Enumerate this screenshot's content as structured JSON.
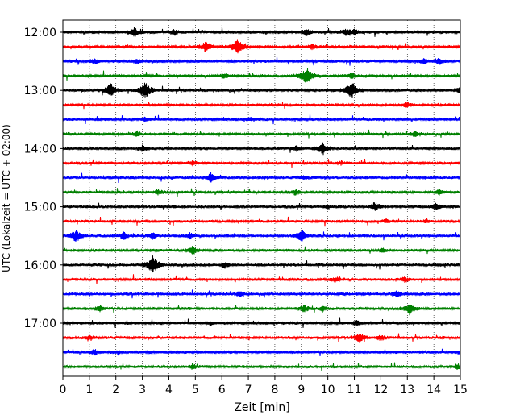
{
  "chart_data": {
    "type": "line",
    "title": "",
    "xlabel": "Zeit  [min]",
    "ylabel": "UTC (Lokalzeit = UTC + 02:00)",
    "xlim": [
      0,
      15
    ],
    "x_ticks": [
      "0",
      "1",
      "2",
      "3",
      "4",
      "5",
      "6",
      "7",
      "8",
      "9",
      "10",
      "11",
      "12",
      "13",
      "14",
      "15"
    ],
    "y_ticks": [
      "12:00",
      "13:00",
      "14:00",
      "15:00",
      "16:00",
      "17:00"
    ],
    "grid": "vertical dotted",
    "colors": [
      "#000000",
      "#ff0000",
      "#0000ff",
      "#008000"
    ],
    "traces": [
      {
        "start": "12:00",
        "color": "#000000",
        "events": [
          [
            2.7,
            0.5
          ],
          [
            4.2,
            0.3
          ],
          [
            9.2,
            0.4
          ],
          [
            11.0,
            0.3
          ],
          [
            10.7,
            0.3
          ]
        ]
      },
      {
        "start": "12:15",
        "color": "#ff0000",
        "events": [
          [
            5.4,
            0.6
          ],
          [
            6.6,
            1.0
          ],
          [
            9.4,
            0.3
          ]
        ]
      },
      {
        "start": "12:30",
        "color": "#0000ff",
        "events": [
          [
            1.2,
            0.3
          ],
          [
            2.8,
            0.3
          ],
          [
            14.2,
            0.3
          ],
          [
            13.6,
            0.3
          ]
        ]
      },
      {
        "start": "12:45",
        "color": "#008000",
        "events": [
          [
            6.1,
            0.3
          ],
          [
            9.2,
            1.0
          ],
          [
            10.9,
            0.3
          ]
        ]
      },
      {
        "start": "13:00",
        "color": "#000000",
        "events": [
          [
            1.8,
            0.8
          ],
          [
            3.1,
            1.0
          ],
          [
            10.9,
            1.0
          ],
          [
            15.0,
            0.4
          ]
        ]
      },
      {
        "start": "13:15",
        "color": "#ff0000",
        "events": [
          [
            13.0,
            0.3
          ]
        ]
      },
      {
        "start": "13:30",
        "color": "#0000ff",
        "events": [
          [
            3.1,
            0.2
          ],
          [
            7.1,
            0.2
          ]
        ]
      },
      {
        "start": "13:45",
        "color": "#008000",
        "events": [
          [
            2.8,
            0.3
          ],
          [
            13.3,
            0.3
          ]
        ]
      },
      {
        "start": "14:00",
        "color": "#000000",
        "events": [
          [
            3.0,
            0.3
          ],
          [
            8.8,
            0.3
          ],
          [
            9.8,
            0.7
          ]
        ]
      },
      {
        "start": "14:15",
        "color": "#ff0000",
        "events": [
          [
            4.9,
            0.3
          ],
          [
            10.5,
            0.2
          ]
        ]
      },
      {
        "start": "14:30",
        "color": "#0000ff",
        "events": [
          [
            5.6,
            0.6
          ],
          [
            9.1,
            0.2
          ]
        ]
      },
      {
        "start": "14:45",
        "color": "#008000",
        "events": [
          [
            3.6,
            0.3
          ],
          [
            8.8,
            0.3
          ],
          [
            14.2,
            0.3
          ]
        ]
      },
      {
        "start": "15:00",
        "color": "#000000",
        "events": [
          [
            11.8,
            0.5
          ],
          [
            14.1,
            0.4
          ],
          [
            10.0,
            0.2
          ]
        ]
      },
      {
        "start": "15:15",
        "color": "#ff0000",
        "events": [
          [
            12.2,
            0.2
          ],
          [
            13.7,
            0.2
          ]
        ]
      },
      {
        "start": "15:30",
        "color": "#0000ff",
        "events": [
          [
            0.5,
            0.7
          ],
          [
            2.3,
            0.4
          ],
          [
            3.4,
            0.4
          ],
          [
            4.8,
            0.3
          ],
          [
            9.0,
            0.7
          ]
        ]
      },
      {
        "start": "15:45",
        "color": "#008000",
        "events": [
          [
            4.9,
            0.5
          ],
          [
            12.1,
            0.2
          ]
        ]
      },
      {
        "start": "16:00",
        "color": "#000000",
        "events": [
          [
            3.4,
            1.0
          ],
          [
            6.1,
            0.3
          ]
        ]
      },
      {
        "start": "16:15",
        "color": "#ff0000",
        "events": [
          [
            10.3,
            0.3
          ],
          [
            12.9,
            0.3
          ]
        ]
      },
      {
        "start": "16:30",
        "color": "#0000ff",
        "events": [
          [
            6.7,
            0.3
          ],
          [
            12.6,
            0.4
          ]
        ]
      },
      {
        "start": "16:45",
        "color": "#008000",
        "events": [
          [
            1.4,
            0.3
          ],
          [
            9.1,
            0.4
          ],
          [
            9.8,
            0.3
          ],
          [
            13.1,
            0.7
          ]
        ]
      },
      {
        "start": "17:00",
        "color": "#000000",
        "events": [
          [
            5.6,
            0.2
          ],
          [
            11.1,
            0.3
          ]
        ]
      },
      {
        "start": "17:15",
        "color": "#ff0000",
        "events": [
          [
            1.0,
            0.2
          ],
          [
            11.2,
            0.6
          ],
          [
            12.0,
            0.3
          ]
        ]
      },
      {
        "start": "17:30",
        "color": "#0000ff",
        "events": [
          [
            1.2,
            0.3
          ],
          [
            2.1,
            0.2
          ],
          [
            15.0,
            0.3
          ]
        ]
      },
      {
        "start": "17:45",
        "color": "#008000",
        "events": [
          [
            4.9,
            0.3
          ],
          [
            14.9,
            0.3
          ]
        ]
      }
    ]
  }
}
